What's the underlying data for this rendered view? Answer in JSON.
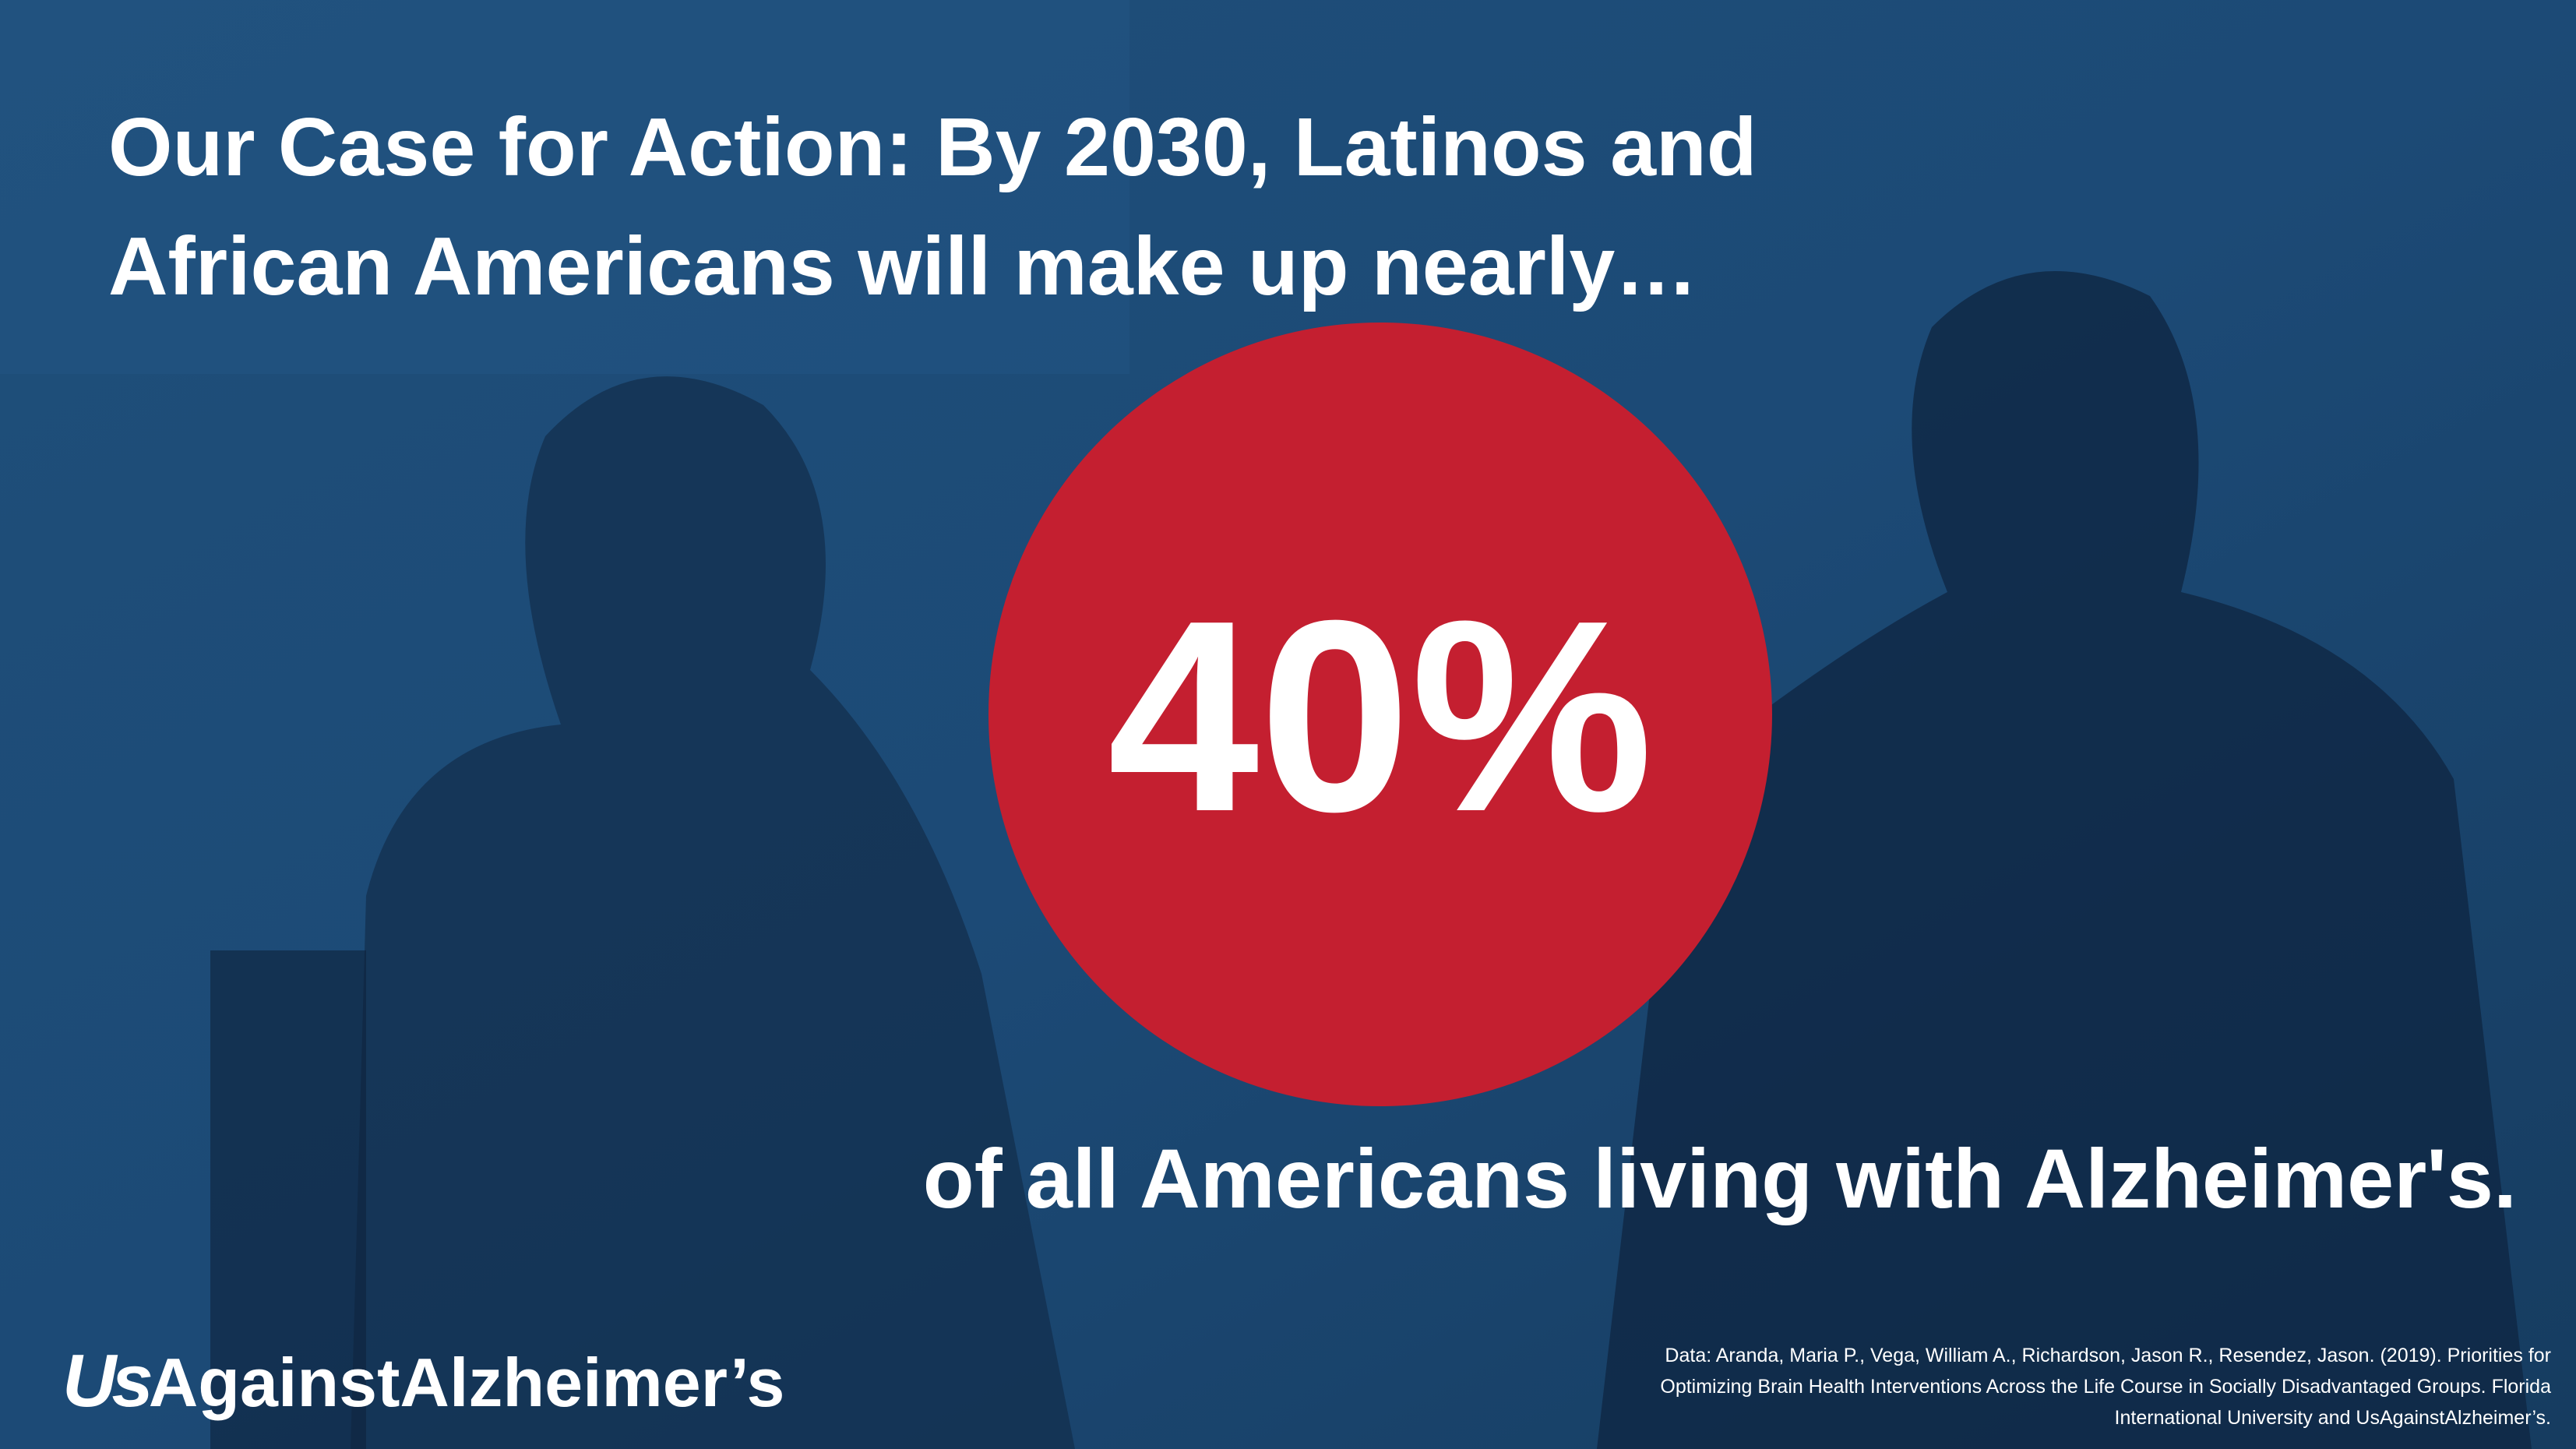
{
  "headline": {
    "lines": [
      "Our Case for Action: By 2030, Latinos and",
      "African Americans will make up nearly…"
    ]
  },
  "stat": "40%",
  "subline": "of all Americans living with Alzheimer's.",
  "logo": {
    "prefix": "Us",
    "rest": "AgainstAlzheimer’s"
  },
  "source": {
    "lines": [
      "Data: Aranda, Maria P., Vega, William A., Richardson, Jason R., Resendez, Jason. (2019). Priorities for",
      "Optimizing Brain Health Interventions Across the Life Course in Socially Disadvantaged Groups. Florida",
      "International University and UsAgainstAlzheimer’s."
    ]
  }
}
